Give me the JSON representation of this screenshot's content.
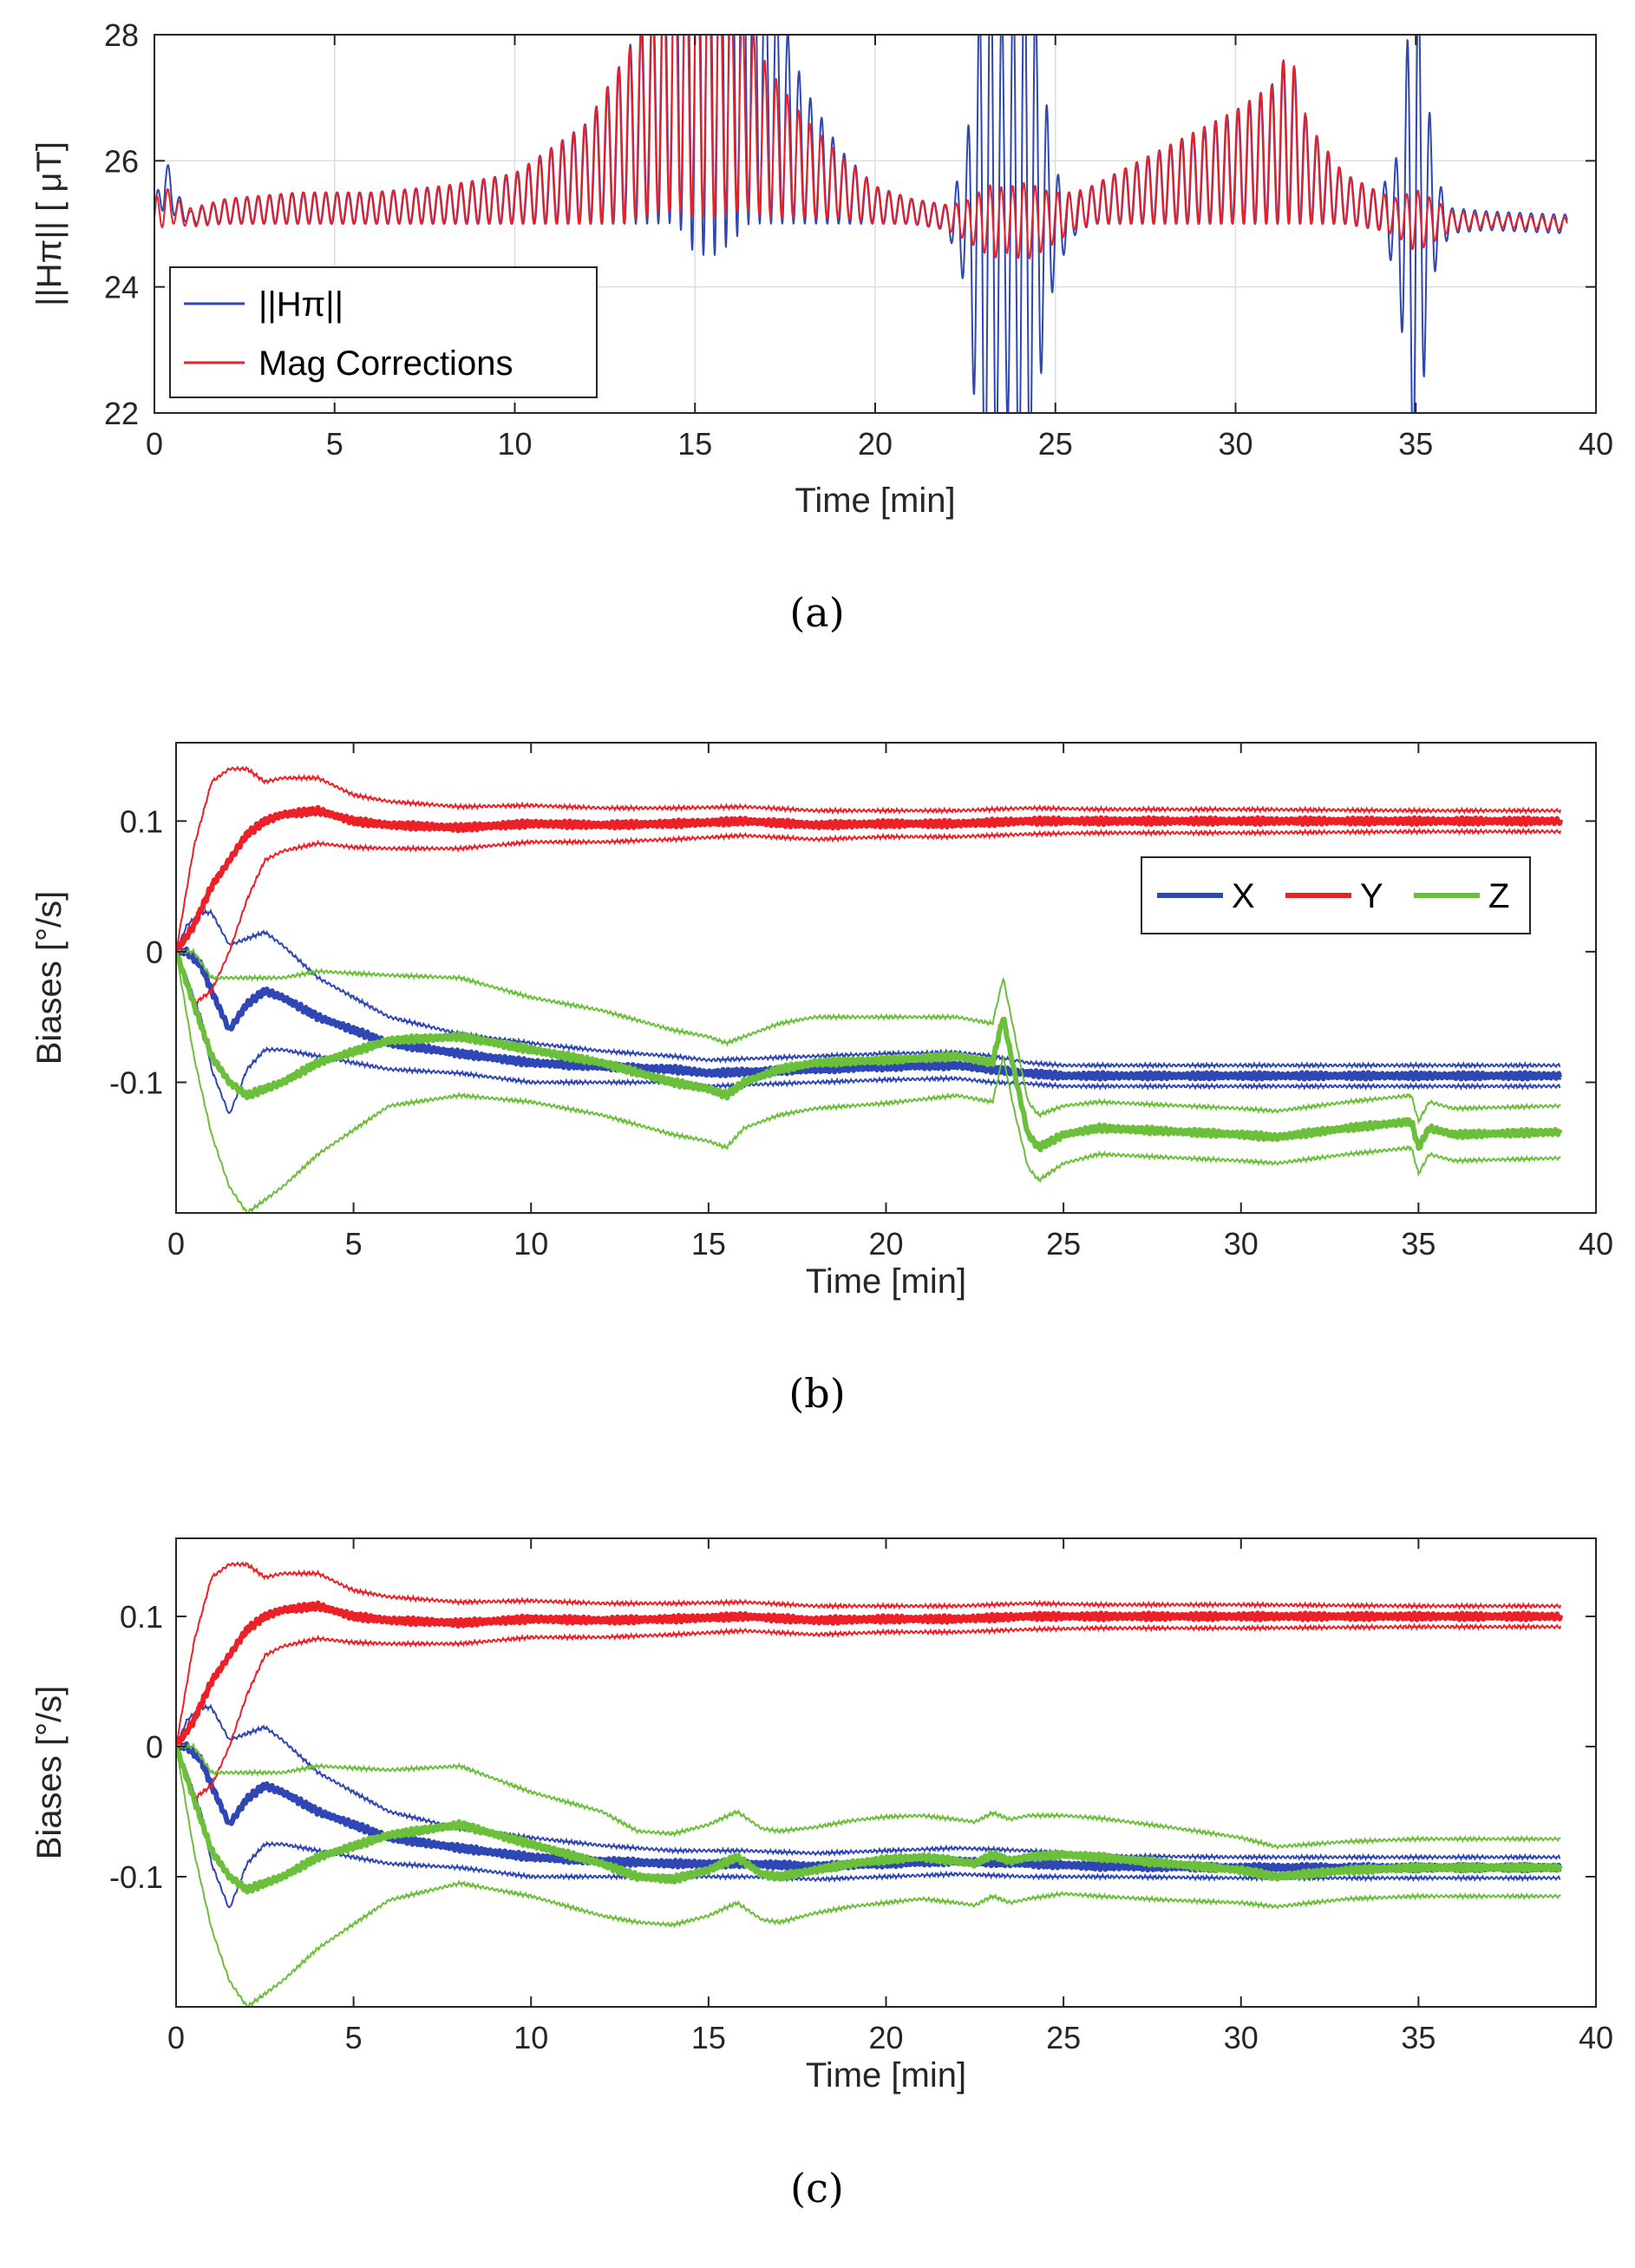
{
  "colors": {
    "blue": "#2e47b4",
    "red": "#ec2027",
    "green": "#6bbf3a",
    "axis": "#262626",
    "grid": "#dddddd"
  },
  "chart_data": [
    {
      "panel": "a",
      "caption": "(a)",
      "type": "line",
      "title": "",
      "xlabel": "Time [min]",
      "ylabel": "||Hπ|| [ μT]",
      "xlim": [
        0,
        40
      ],
      "ylim": [
        22,
        28
      ],
      "xticks": [
        "0",
        "5",
        "10",
        "15",
        "20",
        "25",
        "30",
        "35",
        "40"
      ],
      "yticks": [
        "22",
        "24",
        "26",
        "28"
      ],
      "grid": true,
      "legend": {
        "position": "bottom-left",
        "entries": [
          "||Hπ||",
          "Mag Corrections"
        ]
      },
      "series": [
        {
          "name": "||Hπ||",
          "color": "blue",
          "width": 2,
          "x": [
            0,
            0.3,
            0.6,
            1,
            2,
            4,
            6,
            8,
            10,
            11,
            12,
            13,
            13.5,
            14,
            14.5,
            15,
            15.3,
            15.6,
            16,
            16.5,
            17,
            18,
            19,
            20,
            21,
            22,
            22.5,
            23,
            23.3,
            23.6,
            24,
            24.3,
            24.6,
            25,
            25.5,
            26,
            28,
            30,
            31,
            31.5,
            32,
            33,
            34,
            34.5,
            35,
            35.3,
            35.6,
            36,
            37,
            39
          ],
          "y": [
            25.1,
            25.7,
            25.3,
            25.1,
            25.2,
            25.25,
            25.25,
            25.3,
            25.4,
            25.6,
            25.8,
            26.3,
            26.6,
            27.1,
            28,
            28,
            28,
            28,
            28,
            28,
            27.1,
            26.1,
            25.6,
            25.3,
            25.2,
            25.1,
            25.0,
            24.9,
            25.2,
            25.1,
            25.0,
            25.2,
            25.1,
            25.05,
            25.1,
            25.3,
            25.6,
            25.9,
            26.1,
            26.4,
            25.8,
            25.4,
            25.2,
            25.1,
            25.0,
            25.2,
            25.1,
            25.05,
            25.05,
            25.0
          ],
          "amp": [
            0.2,
            0.4,
            0.2,
            0.1,
            0.2,
            0.25,
            0.25,
            0.3,
            0.4,
            0.6,
            0.8,
            1.3,
            1.6,
            2.1,
            3.0,
            3.5,
            3.5,
            3.5,
            3.3,
            3.0,
            2.1,
            1.1,
            0.6,
            0.3,
            0.2,
            0.2,
            1.0,
            4.5,
            4.5,
            3.0,
            4.5,
            4.5,
            2.5,
            0.8,
            0.3,
            0.3,
            0.6,
            0.9,
            1.1,
            1.4,
            0.8,
            0.4,
            0.3,
            1.0,
            4.5,
            2.0,
            0.6,
            0.2,
            0.15,
            0.15
          ]
        },
        {
          "name": "Mag Corrections",
          "color": "red",
          "width": 2,
          "x": [
            0,
            0.3,
            0.6,
            1,
            2,
            4,
            6,
            8,
            10,
            11,
            12,
            13,
            13.5,
            14,
            14.5,
            15,
            15.3,
            15.6,
            16,
            16.5,
            17,
            18,
            19,
            20,
            21,
            22,
            22.5,
            23,
            23.3,
            23.6,
            24,
            24.3,
            24.6,
            25,
            25.5,
            26,
            28,
            30,
            31,
            31.5,
            32,
            33,
            34,
            34.5,
            35,
            35.3,
            35.6,
            36,
            37,
            39
          ],
          "y": [
            25.1,
            25.3,
            25.2,
            25.1,
            25.2,
            25.25,
            25.25,
            25.3,
            25.4,
            25.6,
            25.8,
            26.3,
            26.6,
            27.1,
            27.4,
            27.4,
            27.4,
            27.2,
            27.0,
            26.7,
            26.3,
            25.9,
            25.6,
            25.3,
            25.2,
            25.1,
            25.05,
            25.05,
            25.05,
            25.05,
            25.05,
            25.05,
            25.05,
            25.1,
            25.2,
            25.3,
            25.6,
            25.9,
            26.1,
            26.4,
            25.8,
            25.4,
            25.2,
            25.1,
            25.05,
            25.05,
            25.05,
            25.05,
            25.05,
            25.0
          ],
          "amp": [
            0.3,
            0.3,
            0.2,
            0.15,
            0.2,
            0.25,
            0.25,
            0.3,
            0.4,
            0.6,
            0.8,
            1.3,
            1.5,
            1.9,
            2.2,
            2.3,
            2.3,
            2.1,
            1.8,
            1.5,
            1.2,
            0.8,
            0.5,
            0.3,
            0.2,
            0.2,
            0.3,
            0.5,
            0.6,
            0.5,
            0.6,
            0.6,
            0.5,
            0.4,
            0.3,
            0.3,
            0.6,
            0.9,
            1.1,
            1.4,
            0.8,
            0.4,
            0.3,
            0.3,
            0.5,
            0.4,
            0.3,
            0.15,
            0.1,
            0.1
          ]
        }
      ]
    },
    {
      "panel": "b",
      "caption": "(b)",
      "type": "line",
      "title": "",
      "xlabel": "Time [min]",
      "ylabel": "Biases [°/s]",
      "xlim": [
        0,
        40
      ],
      "ylim": [
        -0.2,
        0.16
      ],
      "xticks": [
        "0",
        "5",
        "10",
        "15",
        "20",
        "25",
        "30",
        "35",
        "40"
      ],
      "yticks": [
        "-0.1",
        "0",
        "0.1"
      ],
      "ytickvalues": [
        -0.1,
        0,
        0.1
      ],
      "grid": false,
      "legend": {
        "position": "top-right",
        "entries": [
          "X",
          "Y",
          "Z"
        ]
      },
      "series": [
        {
          "name": "X",
          "color": "blue",
          "bold": true,
          "x": [
            0,
            0.3,
            0.7,
            1,
            1.5,
            2,
            2.5,
            3,
            4,
            5,
            6,
            8,
            10,
            12,
            14,
            15,
            16,
            18,
            20,
            22,
            23,
            24,
            25,
            30,
            35,
            39
          ],
          "y": [
            0.0,
            0.0,
            -0.01,
            -0.03,
            -0.06,
            -0.04,
            -0.03,
            -0.035,
            -0.05,
            -0.06,
            -0.07,
            -0.078,
            -0.085,
            -0.088,
            -0.09,
            -0.093,
            -0.092,
            -0.09,
            -0.088,
            -0.087,
            -0.09,
            -0.093,
            -0.095,
            -0.095,
            -0.095,
            -0.095
          ],
          "bound": [
            0.0,
            0.02,
            0.04,
            0.06,
            0.065,
            0.05,
            0.045,
            0.04,
            0.03,
            0.025,
            0.02,
            0.015,
            0.015,
            0.012,
            0.01,
            0.01,
            0.01,
            0.01,
            0.01,
            0.01,
            0.01,
            0.008,
            0.008,
            0.008,
            0.008,
            0.008
          ]
        },
        {
          "name": "Y",
          "color": "red",
          "bold": true,
          "x": [
            0,
            0.5,
            1,
            1.5,
            2,
            2.5,
            3,
            4,
            5,
            6,
            8,
            10,
            12,
            14,
            16,
            18,
            20,
            22,
            24,
            26,
            30,
            35,
            39
          ],
          "y": [
            0.0,
            0.02,
            0.05,
            0.07,
            0.09,
            0.1,
            0.105,
            0.108,
            0.1,
            0.097,
            0.095,
            0.098,
            0.097,
            0.098,
            0.1,
            0.097,
            0.098,
            0.098,
            0.1,
            0.1,
            0.1,
            0.1,
            0.1
          ],
          "bound": [
            0.0,
            0.06,
            0.08,
            0.07,
            0.05,
            0.03,
            0.028,
            0.025,
            0.02,
            0.018,
            0.016,
            0.014,
            0.013,
            0.012,
            0.011,
            0.011,
            0.01,
            0.01,
            0.01,
            0.009,
            0.009,
            0.008,
            0.008
          ]
        },
        {
          "name": "Z",
          "color": "green",
          "bold": true,
          "x": [
            0,
            0.5,
            1,
            1.5,
            2,
            3,
            4,
            6,
            8,
            10,
            12,
            14,
            15,
            15.5,
            16,
            17,
            18,
            20,
            22,
            23,
            23.3,
            23.6,
            24,
            24.3,
            25,
            26,
            30,
            31,
            33,
            34.8,
            35,
            35.3,
            36,
            39
          ],
          "y": [
            0.0,
            -0.04,
            -0.08,
            -0.1,
            -0.11,
            -0.1,
            -0.085,
            -0.068,
            -0.065,
            -0.075,
            -0.085,
            -0.1,
            -0.105,
            -0.11,
            -0.1,
            -0.09,
            -0.085,
            -0.083,
            -0.08,
            -0.085,
            -0.05,
            -0.09,
            -0.14,
            -0.15,
            -0.14,
            -0.135,
            -0.14,
            -0.142,
            -0.135,
            -0.13,
            -0.15,
            -0.135,
            -0.14,
            -0.138
          ],
          "bound": [
            0.0,
            0.04,
            0.06,
            0.08,
            0.09,
            0.08,
            0.07,
            0.05,
            0.045,
            0.04,
            0.04,
            0.04,
            0.04,
            0.04,
            0.035,
            0.035,
            0.035,
            0.033,
            0.03,
            0.03,
            0.03,
            0.03,
            0.025,
            0.025,
            0.022,
            0.02,
            0.02,
            0.02,
            0.02,
            0.02,
            0.02,
            0.02,
            0.02,
            0.02
          ]
        }
      ]
    },
    {
      "panel": "c",
      "caption": "(c)",
      "type": "line",
      "title": "",
      "xlabel": "Time [min]",
      "ylabel": "Biases [°/s]",
      "xlim": [
        0,
        40
      ],
      "ylim": [
        -0.2,
        0.16
      ],
      "xticks": [
        "0",
        "5",
        "10",
        "15",
        "20",
        "25",
        "30",
        "35",
        "40"
      ],
      "yticks": [
        "-0.1",
        "0",
        "0.1"
      ],
      "ytickvalues": [
        -0.1,
        0,
        0.1
      ],
      "grid": false,
      "series": [
        {
          "name": "X",
          "color": "blue",
          "bold": true,
          "x": [
            0,
            0.3,
            0.7,
            1,
            1.5,
            2,
            2.5,
            3,
            4,
            5,
            6,
            8,
            10,
            12,
            14,
            16,
            18,
            20,
            22,
            24,
            26,
            30,
            35,
            39
          ],
          "y": [
            0.0,
            0.0,
            -0.01,
            -0.03,
            -0.06,
            -0.04,
            -0.03,
            -0.035,
            -0.05,
            -0.06,
            -0.07,
            -0.078,
            -0.085,
            -0.088,
            -0.09,
            -0.09,
            -0.092,
            -0.09,
            -0.088,
            -0.09,
            -0.092,
            -0.093,
            -0.093,
            -0.093
          ],
          "bound": [
            0.0,
            0.02,
            0.04,
            0.06,
            0.065,
            0.05,
            0.045,
            0.04,
            0.03,
            0.025,
            0.02,
            0.015,
            0.015,
            0.012,
            0.01,
            0.01,
            0.01,
            0.01,
            0.01,
            0.01,
            0.008,
            0.008,
            0.008,
            0.008
          ]
        },
        {
          "name": "Y",
          "color": "red",
          "bold": true,
          "x": [
            0,
            0.5,
            1,
            1.5,
            2,
            2.5,
            3,
            4,
            5,
            6,
            8,
            10,
            12,
            14,
            16,
            18,
            20,
            22,
            24,
            26,
            30,
            35,
            39
          ],
          "y": [
            0.0,
            0.02,
            0.05,
            0.07,
            0.09,
            0.1,
            0.105,
            0.108,
            0.1,
            0.097,
            0.095,
            0.098,
            0.097,
            0.098,
            0.1,
            0.097,
            0.098,
            0.098,
            0.1,
            0.1,
            0.1,
            0.1,
            0.1
          ],
          "bound": [
            0.0,
            0.06,
            0.08,
            0.07,
            0.05,
            0.03,
            0.028,
            0.025,
            0.02,
            0.018,
            0.016,
            0.014,
            0.013,
            0.012,
            0.011,
            0.011,
            0.01,
            0.01,
            0.01,
            0.009,
            0.009,
            0.008,
            0.008
          ]
        },
        {
          "name": "Z",
          "color": "green",
          "bold": true,
          "x": [
            0,
            0.5,
            1,
            1.5,
            2,
            3,
            4,
            6,
            8,
            10,
            12,
            13,
            14,
            15,
            15.8,
            16.5,
            17,
            18,
            19,
            20,
            21,
            22,
            22.5,
            23,
            23.5,
            24,
            25,
            26,
            28,
            30,
            31,
            33,
            35,
            37,
            39
          ],
          "y": [
            0.0,
            -0.04,
            -0.08,
            -0.1,
            -0.11,
            -0.1,
            -0.085,
            -0.068,
            -0.06,
            -0.075,
            -0.09,
            -0.1,
            -0.102,
            -0.095,
            -0.085,
            -0.098,
            -0.1,
            -0.095,
            -0.09,
            -0.087,
            -0.085,
            -0.088,
            -0.09,
            -0.083,
            -0.088,
            -0.085,
            -0.083,
            -0.085,
            -0.09,
            -0.095,
            -0.1,
            -0.095,
            -0.093,
            -0.093,
            -0.093
          ],
          "bound": [
            0.0,
            0.04,
            0.06,
            0.08,
            0.09,
            0.08,
            0.07,
            0.05,
            0.045,
            0.04,
            0.04,
            0.035,
            0.035,
            0.035,
            0.035,
            0.035,
            0.035,
            0.033,
            0.033,
            0.033,
            0.032,
            0.032,
            0.032,
            0.032,
            0.032,
            0.032,
            0.03,
            0.03,
            0.028,
            0.025,
            0.023,
            0.022,
            0.022,
            0.022,
            0.022
          ]
        }
      ]
    }
  ]
}
